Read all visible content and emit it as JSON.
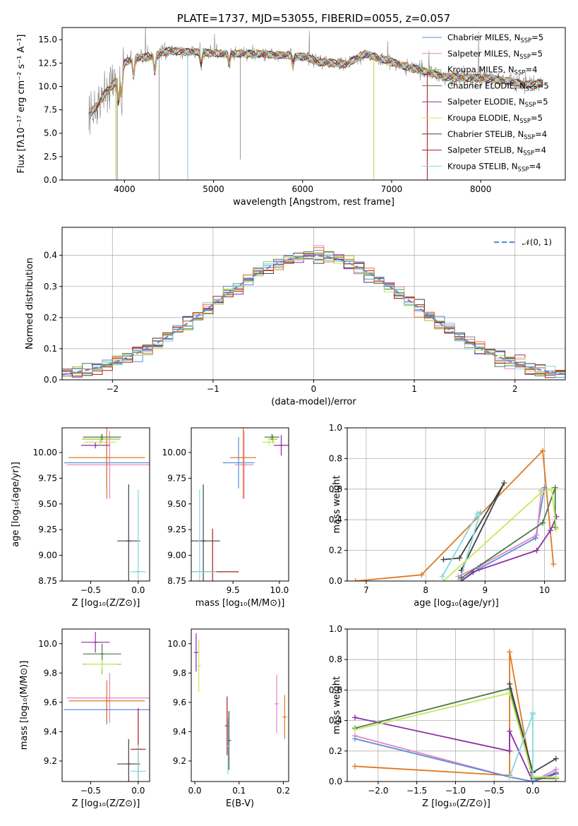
{
  "colors": {
    "chabrier_miles": "#5b8ed8",
    "salpeter_miles": "#e584c4",
    "kroupa_miles": "#96c43c",
    "chabrier_elodie": "#4a7a4a",
    "salpeter_elodie": "#8e2ba8",
    "kroupa_elodie": "#c8e85a",
    "chabrier_stelib": "#404040",
    "salpeter_stelib": "#b01818",
    "kroupa_stelib": "#82d8e0",
    "orange": "#e07820",
    "data": "#808080"
  },
  "chart_data": [
    {
      "id": "spectrum",
      "type": "line",
      "title": "PLATE=1737, MJD=53055, FIBERID=0055, z=0.057",
      "xlabel": "wavelength [Angstrom, rest frame]",
      "ylabel": "Flux [fλ10⁻¹⁷ erg cm⁻² s⁻¹ A⁻¹]",
      "xlim": [
        3300,
        8950
      ],
      "ylim": [
        0,
        16.3
      ],
      "xticks": [
        "4000",
        "5000",
        "6000",
        "7000",
        "8000"
      ],
      "yticks": [
        "0.0",
        "2.5",
        "5.0",
        "7.5",
        "10.0",
        "12.5",
        "15.0"
      ],
      "continuum": [
        [
          3600,
          7.0
        ],
        [
          3700,
          8.0
        ],
        [
          3800,
          9.5
        ],
        [
          3900,
          10.5
        ],
        [
          4000,
          12.5
        ],
        [
          4100,
          13.0
        ],
        [
          4300,
          13.2
        ],
        [
          4500,
          13.8
        ],
        [
          4800,
          13.7
        ],
        [
          5100,
          13.5
        ],
        [
          5500,
          13.5
        ],
        [
          5800,
          13.3
        ],
        [
          6000,
          13.2
        ],
        [
          6200,
          12.6
        ],
        [
          6500,
          12.4
        ],
        [
          6700,
          13.5
        ],
        [
          6900,
          12.9
        ],
        [
          7100,
          12.3
        ],
        [
          7300,
          11.8
        ],
        [
          7600,
          11.0
        ],
        [
          8000,
          10.9
        ],
        [
          8300,
          10.6
        ],
        [
          8500,
          10.2
        ],
        [
          8700,
          10.4
        ]
      ],
      "legend": [
        {
          "name": "Chabrier MILES, N",
          "sub": "SSP",
          "val": "=5"
        },
        {
          "name": "Salpeter MILES, N",
          "sub": "SSP",
          "val": "=5"
        },
        {
          "name": "Kroupa MILES, N",
          "sub": "SSP",
          "val": "=4"
        },
        {
          "name": "Chabrier ELODIE, N",
          "sub": "SSP",
          "val": "=5"
        },
        {
          "name": "Salpeter ELODIE, N",
          "sub": "SSP",
          "val": "=5"
        },
        {
          "name": "Kroupa ELODIE, N",
          "sub": "SSP",
          "val": "=5"
        },
        {
          "name": "Chabrier STELIB, N",
          "sub": "SSP",
          "val": "=4"
        },
        {
          "name": "Salpeter STELIB, N",
          "sub": "SSP",
          "val": "=4"
        },
        {
          "name": "Kroupa STELIB, N",
          "sub": "SSP",
          "val": "=4"
        }
      ]
    },
    {
      "id": "residuals",
      "type": "line",
      "xlabel": "(data-model)/error",
      "ylabel": "Normed distribution",
      "xlim": [
        -2.5,
        2.5
      ],
      "ylim": [
        0,
        0.49
      ],
      "xticks": [
        "−2",
        "−1",
        "0",
        "1",
        "2"
      ],
      "yticks": [
        "0.0",
        "0.1",
        "0.2",
        "0.3",
        "0.4"
      ],
      "legend": "𝒩(0, 1)"
    },
    {
      "id": "age_vs_Z",
      "type": "scatter",
      "xlabel": "Z [log₁₀(Z/Z⊙)]",
      "ylabel": "age  [log₁₀(age/yr)]",
      "xlim": [
        -0.8,
        0.12
      ],
      "ylim": [
        8.75,
        10.24
      ],
      "xticks": [
        "−0.5",
        "0.0"
      ],
      "yticks": [
        "8.75",
        "9.00",
        "9.25",
        "9.50",
        "9.75",
        "10.00"
      ],
      "points": [
        {
          "s": "chabrier_miles",
          "x": -0.33,
          "y": 9.9,
          "xe": 0.45,
          "ye": 0.25
        },
        {
          "s": "salpeter_miles",
          "x": -0.3,
          "y": 9.88,
          "xe": 0.45,
          "ye": 0.33
        },
        {
          "s": "kroupa_miles",
          "x": -0.39,
          "y": 10.13,
          "xe": 0.2,
          "ye": 0.04
        },
        {
          "s": "chabrier_elodie",
          "x": -0.38,
          "y": 10.15,
          "xe": 0.2,
          "ye": 0.03
        },
        {
          "s": "salpeter_elodie",
          "x": -0.45,
          "y": 10.07,
          "xe": 0.15,
          "ye": 0.03
        },
        {
          "s": "kroupa_elodie",
          "x": -0.4,
          "y": 10.1,
          "xe": 0.17,
          "ye": 0.03
        },
        {
          "s": "chabrier_stelib",
          "x": -0.1,
          "y": 9.14,
          "xe": 0.12,
          "ye": 0.55
        },
        {
          "s": "salpeter_stelib",
          "x": 0.0,
          "y": 8.84,
          "xe": 0.0,
          "ye": 0.0
        },
        {
          "s": "kroupa_stelib",
          "x": 0.0,
          "y": 8.84,
          "xe": 0.08,
          "ye": 0.8
        },
        {
          "s": "orange",
          "x": -0.33,
          "y": 9.95,
          "xe": 0.4,
          "ye": 0.4
        }
      ]
    },
    {
      "id": "age_vs_mass",
      "type": "scatter",
      "xlabel": "mass [log₁₀(M/M⊙)]",
      "ylabel": "",
      "xlim": [
        9.05,
        10.1
      ],
      "ylim": [
        8.75,
        10.24
      ],
      "xticks": [
        "9.5",
        "10.0"
      ],
      "yticks": [
        "8.75",
        "9.00",
        "9.25",
        "9.50",
        "9.75",
        "10.00"
      ],
      "points": [
        {
          "s": "chabrier_miles",
          "x": 9.56,
          "y": 9.9,
          "xe": 0.17,
          "ye": 0.25
        },
        {
          "s": "salpeter_miles",
          "x": 9.62,
          "y": 9.88,
          "xe": 0.1,
          "ye": 0.33
        },
        {
          "s": "kroupa_miles",
          "x": 9.93,
          "y": 10.13,
          "xe": 0.05,
          "ye": 0.04
        },
        {
          "s": "chabrier_elodie",
          "x": 9.92,
          "y": 10.15,
          "xe": 0.08,
          "ye": 0.03
        },
        {
          "s": "salpeter_elodie",
          "x": 10.02,
          "y": 10.07,
          "xe": 0.08,
          "ye": 0.1
        },
        {
          "s": "kroupa_elodie",
          "x": 9.89,
          "y": 10.1,
          "xe": 0.07,
          "ye": 0.03
        },
        {
          "s": "chabrier_stelib",
          "x": 9.18,
          "y": 9.14,
          "xe": 0.18,
          "ye": 0.55
        },
        {
          "s": "salpeter_stelib",
          "x": 9.28,
          "y": 8.84,
          "xe": 0.28,
          "ye": 0.42
        },
        {
          "s": "kroupa_stelib",
          "x": 9.14,
          "y": 8.84,
          "xe": 0.18,
          "ye": 0.8
        },
        {
          "s": "orange",
          "x": 9.61,
          "y": 9.95,
          "xe": 0.14,
          "ye": 0.4
        }
      ]
    },
    {
      "id": "weight_vs_age",
      "type": "line",
      "xlabel": "age  [log₁₀(age/yr)]",
      "ylabel": "mass weight",
      "xlim": [
        6.68,
        10.35
      ],
      "ylim": [
        0,
        1.0
      ],
      "xticks": [
        "7",
        "8",
        "9",
        "10"
      ],
      "yticks": [
        "0.0",
        "0.2",
        "0.4",
        "0.6",
        "0.8",
        "1.0"
      ],
      "series": [
        {
          "s": "orange",
          "pts": [
            [
              6.82,
              0.0
            ],
            [
              7.93,
              0.04
            ],
            [
              9.97,
              0.85
            ],
            [
              10.15,
              0.11
            ]
          ]
        },
        {
          "s": "chabrier_stelib",
          "pts": [
            [
              8.3,
              0.14
            ],
            [
              8.57,
              0.15
            ],
            [
              9.32,
              0.64
            ],
            [
              8.6,
              0.07
            ]
          ]
        },
        {
          "s": "kroupa_stelib",
          "pts": [
            [
              8.28,
              0.03
            ],
            [
              8.87,
              0.44
            ],
            [
              8.92,
              0.45
            ],
            [
              8.58,
              0.01
            ]
          ]
        },
        {
          "s": "chabrier_miles",
          "pts": [
            [
              8.6,
              0.0
            ],
            [
              8.9,
              0.08
            ],
            [
              9.85,
              0.28
            ],
            [
              10.0,
              0.61
            ]
          ]
        },
        {
          "s": "salpeter_miles",
          "pts": [
            [
              8.55,
              0.03
            ],
            [
              8.92,
              0.1
            ],
            [
              9.87,
              0.3
            ],
            [
              9.95,
              0.59
            ]
          ]
        },
        {
          "s": "salpeter_elodie",
          "pts": [
            [
              8.6,
              0.0
            ],
            [
              8.8,
              0.06
            ],
            [
              9.87,
              0.2
            ],
            [
              10.1,
              0.33
            ],
            [
              10.2,
              0.42
            ]
          ]
        },
        {
          "s": "chabrier_elodie",
          "pts": [
            [
              8.6,
              0.02
            ],
            [
              9.97,
              0.38
            ],
            [
              10.18,
              0.61
            ],
            [
              10.18,
              0.35
            ]
          ]
        },
        {
          "s": "kroupa_elodie",
          "pts": [
            [
              8.3,
              0.0
            ],
            [
              9.95,
              0.58
            ],
            [
              10.12,
              0.6
            ],
            [
              10.2,
              0.34
            ]
          ]
        }
      ]
    },
    {
      "id": "mass_vs_Z",
      "type": "scatter",
      "xlabel": "Z [log₁₀(Z/Z⊙)]",
      "ylabel": "mass [log₁₀(M/M⊙)]",
      "xlim": [
        -0.8,
        0.12
      ],
      "ylim": [
        9.06,
        10.1
      ],
      "xticks": [
        "−0.5",
        "0.0"
      ],
      "yticks": [
        "9.2",
        "9.4",
        "9.6",
        "9.8",
        "10.0"
      ],
      "points": [
        {
          "s": "chabrier_miles",
          "x": -0.33,
          "y": 9.55,
          "xe": 0.45,
          "ye": 0.1
        },
        {
          "s": "salpeter_miles",
          "x": -0.3,
          "y": 9.63,
          "xe": 0.45,
          "ye": 0.17
        },
        {
          "s": "kroupa_miles",
          "x": -0.38,
          "y": 9.86,
          "xe": 0.2,
          "ye": 0.07
        },
        {
          "s": "chabrier_elodie",
          "x": -0.38,
          "y": 9.93,
          "xe": 0.2,
          "ye": 0.07
        },
        {
          "s": "salpeter_elodie",
          "x": -0.45,
          "y": 10.01,
          "xe": 0.15,
          "ye": 0.07
        },
        {
          "s": "kroupa_elodie",
          "x": -0.38,
          "y": 9.86,
          "xe": 0.17,
          "ye": 0.03
        },
        {
          "s": "chabrier_stelib",
          "x": -0.1,
          "y": 9.18,
          "xe": 0.12,
          "ye": 0.17
        },
        {
          "s": "salpeter_stelib",
          "x": 0.0,
          "y": 9.28,
          "xe": 0.08,
          "ye": 0.28
        },
        {
          "s": "kroupa_stelib",
          "x": 0.0,
          "y": 9.13,
          "xe": 0.08,
          "ye": 0.18
        },
        {
          "s": "orange",
          "x": -0.33,
          "y": 9.61,
          "xe": 0.4,
          "ye": 0.14
        }
      ]
    },
    {
      "id": "mass_vs_ebv",
      "type": "scatter",
      "xlabel": "E(B-V)",
      "ylabel": "",
      "xlim": [
        -0.008,
        0.212
      ],
      "ylim": [
        9.06,
        10.1
      ],
      "xticks": [
        "0.0",
        "0.1",
        "0.2"
      ],
      "yticks": [
        "9.2",
        "9.4",
        "9.6",
        "9.8",
        "10.0"
      ],
      "points": [
        {
          "s": "salpeter_elodie",
          "x": 0.003,
          "y": 9.94,
          "xe": 0.0,
          "ye": 0.13
        },
        {
          "s": "kroupa_elodie",
          "x": 0.009,
          "y": 9.85,
          "xe": 0.0,
          "ye": 0.18
        },
        {
          "s": "salpeter_stelib",
          "x": 0.073,
          "y": 9.44,
          "xe": 0.0,
          "ye": 0.2
        },
        {
          "s": "chabrier_stelib",
          "x": 0.077,
          "y": 9.34,
          "xe": 0.0,
          "ye": 0.2
        },
        {
          "s": "kroupa_stelib",
          "x": 0.075,
          "y": 9.3,
          "xe": 0.0,
          "ye": 0.19
        },
        {
          "s": "salpeter_miles",
          "x": 0.185,
          "y": 9.59,
          "xe": 0.0,
          "ye": 0.2
        },
        {
          "s": "orange",
          "x": 0.203,
          "y": 9.5,
          "xe": 0.0,
          "ye": 0.15
        }
      ]
    },
    {
      "id": "weight_vs_Z",
      "type": "line",
      "xlabel": "Z [log₁₀(Z/Z⊙)]",
      "ylabel": "mass weight",
      "xlim": [
        -2.4,
        0.42
      ],
      "ylim": [
        0,
        1.0
      ],
      "xticks": [
        "−2.0",
        "−1.5",
        "−1.0",
        "−0.5",
        "0.0"
      ],
      "yticks": [
        "0.0",
        "0.2",
        "0.4",
        "0.6",
        "0.8",
        "1.0"
      ],
      "series": [
        {
          "s": "orange",
          "pts": [
            [
              -2.3,
              0.1
            ],
            [
              -0.3,
              0.04
            ],
            [
              -0.3,
              0.85
            ],
            [
              0.0,
              0.0
            ],
            [
              0.3,
              0.0
            ]
          ]
        },
        {
          "s": "salpeter_elodie",
          "pts": [
            [
              -2.3,
              0.42
            ],
            [
              -0.3,
              0.2
            ],
            [
              -0.3,
              0.33
            ],
            [
              0.0,
              0.0
            ],
            [
              0.3,
              0.05
            ]
          ]
        },
        {
          "s": "salpeter_miles",
          "pts": [
            [
              -2.3,
              0.3
            ],
            [
              -0.3,
              0.03
            ],
            [
              0.0,
              0.0
            ],
            [
              0.3,
              0.08
            ]
          ]
        },
        {
          "s": "chabrier_miles",
          "pts": [
            [
              -2.3,
              0.28
            ],
            [
              -0.3,
              0.03
            ],
            [
              0.0,
              0.0
            ],
            [
              0.3,
              0.06
            ]
          ]
        },
        {
          "s": "chabrier_elodie",
          "pts": [
            [
              -2.3,
              0.35
            ],
            [
              -0.3,
              0.61
            ],
            [
              0.0,
              0.02
            ],
            [
              0.3,
              0.02
            ]
          ]
        },
        {
          "s": "kroupa_elodie",
          "pts": [
            [
              -2.3,
              0.34
            ],
            [
              -0.3,
              0.58
            ],
            [
              0.0,
              0.03
            ],
            [
              0.3,
              0.03
            ]
          ]
        },
        {
          "s": "chabrier_stelib",
          "pts": [
            [
              -0.3,
              0.64
            ],
            [
              0.0,
              0.06
            ],
            [
              0.3,
              0.15
            ]
          ]
        },
        {
          "s": "kroupa_stelib",
          "pts": [
            [
              -0.3,
              0.03
            ],
            [
              0.0,
              0.44
            ],
            [
              0.0,
              0.45
            ],
            [
              0.0,
              0.0
            ]
          ]
        }
      ]
    }
  ]
}
